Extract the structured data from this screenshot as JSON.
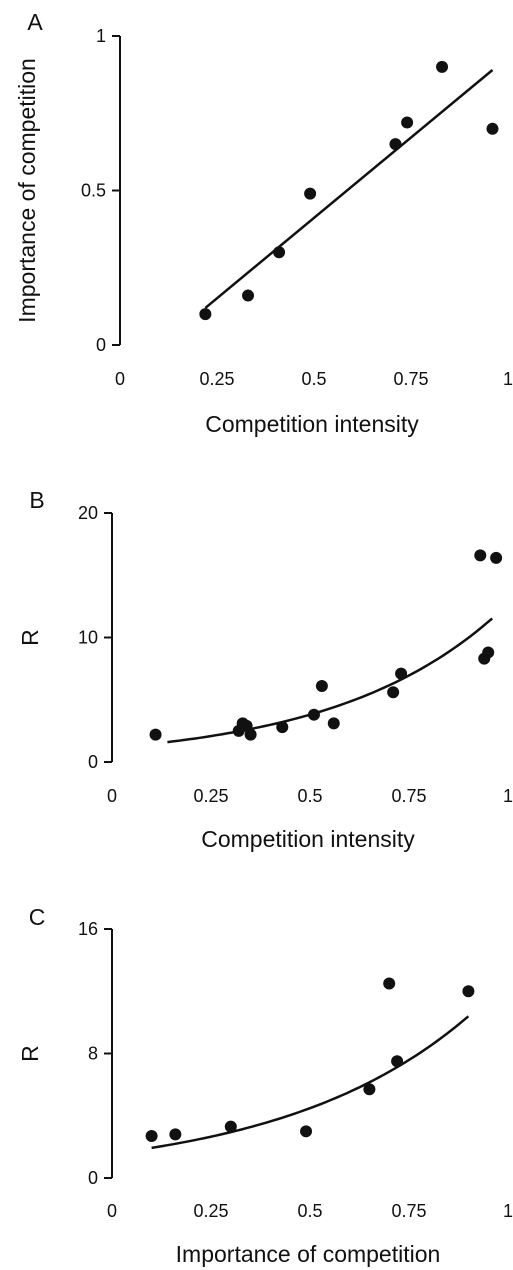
{
  "chart_data": [
    {
      "type": "scatter",
      "panel": "A",
      "xlabel": "Competition intensity",
      "ylabel": "Importance of competition",
      "xlim": [
        0,
        1
      ],
      "ylim": [
        0,
        1
      ],
      "xticks": [
        "0",
        "0.25",
        "0.5",
        "0.75",
        "1"
      ],
      "yticks": [
        "0",
        "0.5",
        "1"
      ],
      "points": [
        {
          "x": 0.22,
          "y": 0.1
        },
        {
          "x": 0.33,
          "y": 0.16
        },
        {
          "x": 0.41,
          "y": 0.3
        },
        {
          "x": 0.49,
          "y": 0.49
        },
        {
          "x": 0.71,
          "y": 0.65
        },
        {
          "x": 0.74,
          "y": 0.72
        },
        {
          "x": 0.83,
          "y": 0.9
        },
        {
          "x": 0.96,
          "y": 0.7
        }
      ],
      "fit": {
        "type": "linear",
        "x_range": [
          0.22,
          0.96
        ],
        "y_range": [
          0.12,
          0.89
        ]
      }
    },
    {
      "type": "scatter",
      "panel": "B",
      "xlabel": "Competition intensity",
      "ylabel": "R",
      "xlim": [
        0,
        1
      ],
      "ylim": [
        0,
        20
      ],
      "xticks": [
        "0",
        "0.25",
        "0.5",
        "0.75",
        "1"
      ],
      "yticks": [
        "0",
        "10",
        "20"
      ],
      "points": [
        {
          "x": 0.11,
          "y": 2.2
        },
        {
          "x": 0.32,
          "y": 2.5
        },
        {
          "x": 0.33,
          "y": 3.1
        },
        {
          "x": 0.34,
          "y": 2.9
        },
        {
          "x": 0.35,
          "y": 2.2
        },
        {
          "x": 0.43,
          "y": 2.8
        },
        {
          "x": 0.51,
          "y": 3.8
        },
        {
          "x": 0.53,
          "y": 6.1
        },
        {
          "x": 0.56,
          "y": 3.1
        },
        {
          "x": 0.71,
          "y": 5.6
        },
        {
          "x": 0.73,
          "y": 7.1
        },
        {
          "x": 0.93,
          "y": 16.6
        },
        {
          "x": 0.94,
          "y": 8.3
        },
        {
          "x": 0.95,
          "y": 8.8
        },
        {
          "x": 0.97,
          "y": 16.4
        }
      ],
      "fit": {
        "type": "exponential",
        "x_range": [
          0.14,
          0.96
        ],
        "a": 1.14,
        "b": 2.41
      }
    },
    {
      "type": "scatter",
      "panel": "C",
      "xlabel": "Importance of competition",
      "ylabel": "R",
      "xlim": [
        0,
        1
      ],
      "ylim": [
        0,
        16
      ],
      "xticks": [
        "0",
        "0.25",
        "0.5",
        "0.75",
        "1"
      ],
      "yticks": [
        "0",
        "8",
        "16"
      ],
      "points": [
        {
          "x": 0.1,
          "y": 2.7
        },
        {
          "x": 0.16,
          "y": 2.8
        },
        {
          "x": 0.3,
          "y": 3.3
        },
        {
          "x": 0.49,
          "y": 3.0
        },
        {
          "x": 0.65,
          "y": 5.7
        },
        {
          "x": 0.7,
          "y": 12.5
        },
        {
          "x": 0.72,
          "y": 7.5
        },
        {
          "x": 0.9,
          "y": 12.0
        }
      ],
      "fit": {
        "type": "exponential",
        "x_range": [
          0.1,
          0.9
        ],
        "a": 1.57,
        "b": 2.1
      }
    }
  ]
}
